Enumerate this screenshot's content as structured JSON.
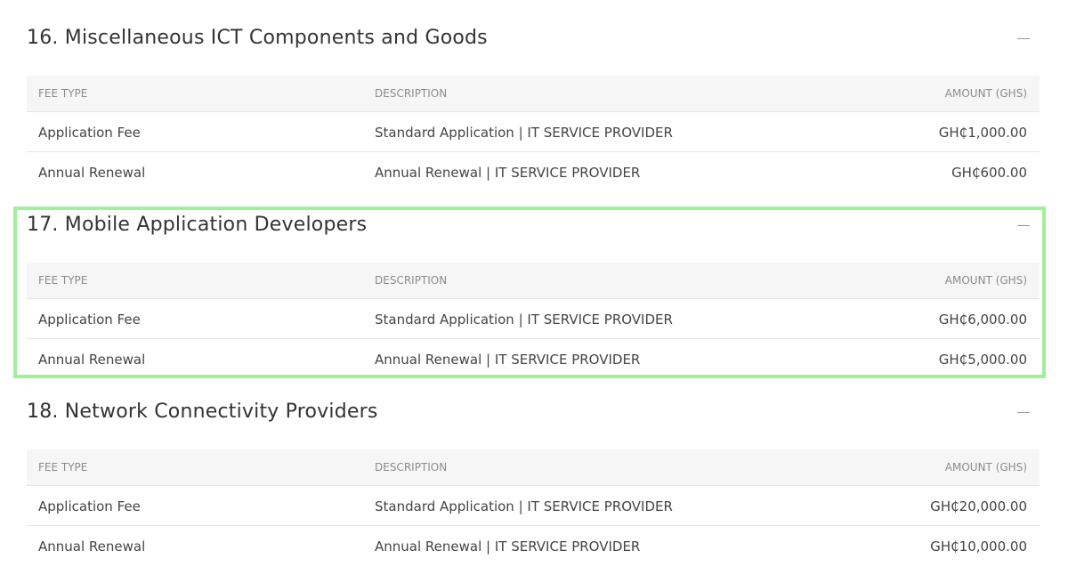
{
  "columns": [
    "FEE TYPE",
    "DESCRIPTION",
    "AMOUNT (GHS)"
  ],
  "sections": [
    {
      "title": "16. Miscellaneous ICT Components and Goods",
      "rows": [
        [
          "Application Fee",
          "Standard Application | IT SERVICE PROVIDER",
          "GH₵1,000.00"
        ],
        [
          "Annual Renewal",
          "Annual Renewal | IT SERVICE PROVIDER",
          "GH₵600.00"
        ]
      ]
    },
    {
      "title": "17. Mobile Application Developers",
      "rows": [
        [
          "Application Fee",
          "Standard Application | IT SERVICE PROVIDER",
          "GH₵6,000.00"
        ],
        [
          "Annual Renewal",
          "Annual Renewal | IT SERVICE PROVIDER",
          "GH₵5,000.00"
        ]
      ]
    },
    {
      "title": "18. Network Connectivity Providers",
      "rows": [
        [
          "Application Fee",
          "Standard Application | IT SERVICE PROVIDER",
          "GH₵20,000.00"
        ],
        [
          "Annual Renewal",
          "Annual Renewal | IT SERVICE PROVIDER",
          "GH₵10,000.00"
        ]
      ]
    }
  ]
}
